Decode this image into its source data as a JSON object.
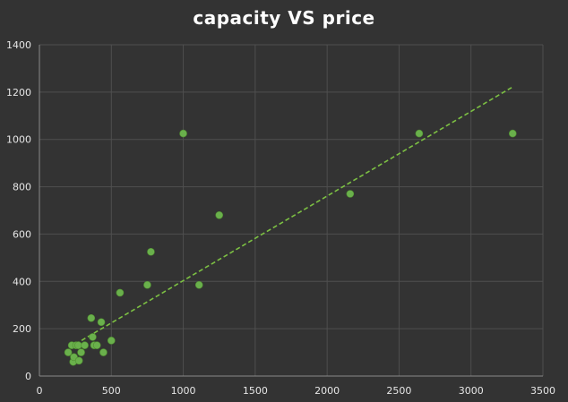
{
  "chart_data": {
    "type": "scatter",
    "title": "capacity VS price",
    "xlabel": "",
    "ylabel": "",
    "xlim": [
      0,
      3500
    ],
    "ylim": [
      0,
      1400
    ],
    "xticks": [
      0,
      500,
      1000,
      1500,
      2000,
      2500,
      3000,
      3500
    ],
    "yticks": [
      0,
      200,
      400,
      600,
      800,
      1000,
      1200,
      1400
    ],
    "grid": true,
    "colors": {
      "point": "#6ab04c",
      "trend": "#7cc043",
      "background": "#333333",
      "grid": "#4f4f4f"
    },
    "points": [
      {
        "x": 200,
        "y": 100
      },
      {
        "x": 225,
        "y": 130
      },
      {
        "x": 235,
        "y": 60
      },
      {
        "x": 240,
        "y": 80
      },
      {
        "x": 255,
        "y": 130
      },
      {
        "x": 270,
        "y": 130
      },
      {
        "x": 275,
        "y": 65
      },
      {
        "x": 290,
        "y": 100
      },
      {
        "x": 315,
        "y": 130
      },
      {
        "x": 360,
        "y": 245
      },
      {
        "x": 370,
        "y": 165
      },
      {
        "x": 380,
        "y": 130
      },
      {
        "x": 400,
        "y": 130
      },
      {
        "x": 430,
        "y": 228
      },
      {
        "x": 445,
        "y": 100
      },
      {
        "x": 500,
        "y": 150
      },
      {
        "x": 560,
        "y": 352
      },
      {
        "x": 750,
        "y": 385
      },
      {
        "x": 775,
        "y": 525
      },
      {
        "x": 1000,
        "y": 1025
      },
      {
        "x": 1110,
        "y": 385
      },
      {
        "x": 1250,
        "y": 680
      },
      {
        "x": 2160,
        "y": 770
      },
      {
        "x": 2640,
        "y": 1025
      },
      {
        "x": 3290,
        "y": 1025
      }
    ],
    "trendline": {
      "type": "linear",
      "x": [
        250,
        3290
      ],
      "y": [
        135,
        1222
      ]
    }
  }
}
